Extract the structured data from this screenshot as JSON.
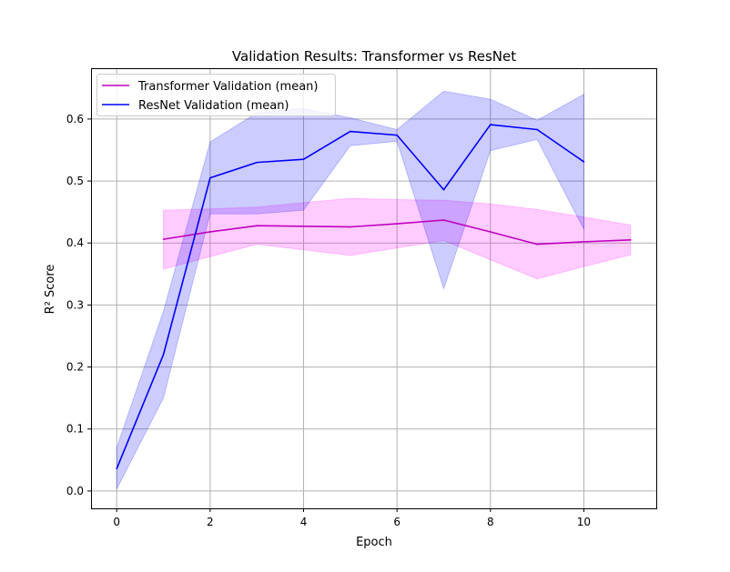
{
  "chart_data": {
    "type": "line",
    "title": "Validation Results: Transformer vs ResNet",
    "xlabel": "Epoch",
    "ylabel": "R² Score",
    "xlim": [
      -0.55,
      11.55
    ],
    "ylim": [
      -0.028,
      0.682
    ],
    "xticks": [
      0,
      2,
      4,
      6,
      8,
      10
    ],
    "yticks": [
      0.0,
      0.1,
      0.2,
      0.3,
      0.4,
      0.5,
      0.6
    ],
    "xtick_labels": [
      "0",
      "2",
      "4",
      "6",
      "8",
      "10"
    ],
    "ytick_labels": [
      "0.0",
      "0.1",
      "0.2",
      "0.3",
      "0.4",
      "0.5",
      "0.6"
    ],
    "grid": true,
    "legend_position": "top-left",
    "series": [
      {
        "name": "Transformer Validation (mean)",
        "color": "#bf00bf",
        "band_color": "#ff00ff",
        "x": [
          1,
          2,
          3,
          4,
          5,
          6,
          7,
          8,
          9,
          10,
          11
        ],
        "y": [
          0.406,
          0.418,
          0.428,
          0.427,
          0.426,
          0.431,
          0.437,
          0.418,
          0.398,
          0.402,
          0.405
        ],
        "lower": [
          0.358,
          0.378,
          0.398,
          0.389,
          0.38,
          0.392,
          0.404,
          0.373,
          0.342,
          0.362,
          0.381
        ],
        "upper": [
          0.453,
          0.455,
          0.458,
          0.465,
          0.472,
          0.47,
          0.469,
          0.463,
          0.454,
          0.442,
          0.429
        ]
      },
      {
        "name": "ResNet Validation (mean)",
        "color": "#0000ff",
        "band_color": "#0000ff",
        "x": [
          0,
          1,
          2,
          3,
          4,
          5,
          6,
          7,
          8,
          9,
          10
        ],
        "y": [
          0.036,
          0.22,
          0.505,
          0.53,
          0.535,
          0.58,
          0.574,
          0.486,
          0.591,
          0.583,
          0.531
        ],
        "lower": [
          0.003,
          0.15,
          0.447,
          0.447,
          0.453,
          0.557,
          0.564,
          0.326,
          0.549,
          0.567,
          0.422
        ],
        "upper": [
          0.07,
          0.29,
          0.563,
          0.61,
          0.617,
          0.602,
          0.583,
          0.645,
          0.632,
          0.598,
          0.64
        ]
      }
    ]
  }
}
